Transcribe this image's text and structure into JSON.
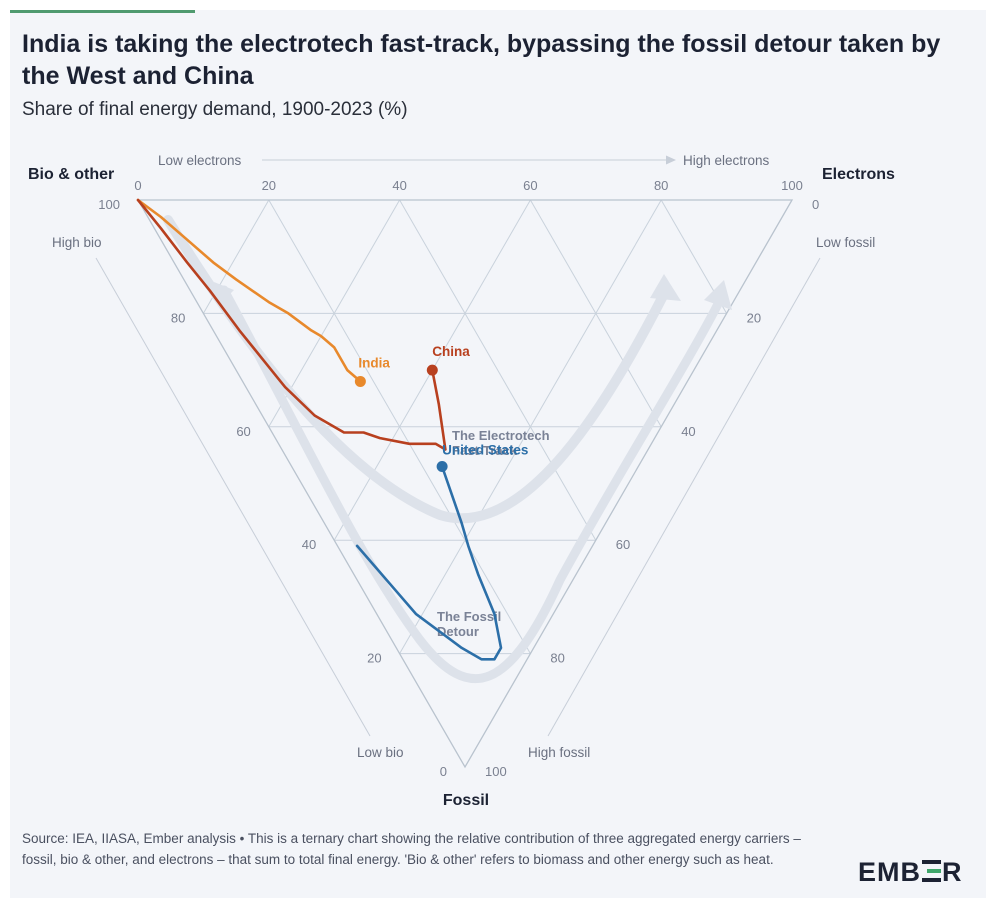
{
  "header": {
    "title": "India is taking the electrotech fast-track, bypassing the fossil detour taken by the West and China",
    "subtitle": "Share of final energy demand, 1900-2023 (%)"
  },
  "colors": {
    "accent": "#4f9a6f",
    "india": "#e8892c",
    "china": "#b8401f",
    "united_states": "#2c6fa8",
    "grid": "#c9d2dc",
    "arrow": "#dde2ea"
  },
  "chart_data": {
    "type": "ternary",
    "title": "India is taking the electrotech fast-track, bypassing the fossil detour taken by the West and China",
    "subtitle": "Share of final energy demand, 1900-2023 (%)",
    "components": [
      "Electrons",
      "Bio & other",
      "Fossil"
    ],
    "axes": {
      "bio_label": "Bio & other",
      "electrons_label": "Electrons",
      "fossil_label": "Fossil",
      "top_left_arrow": "Low electrons",
      "top_right_arrow": "High electrons",
      "high_bio": "High bio",
      "low_bio": "Low bio",
      "low_fossil": "Low fossil",
      "high_fossil": "High fossil"
    },
    "ticks": {
      "electrons": [
        "0",
        "20",
        "40",
        "60",
        "80",
        "100"
      ],
      "bio": [
        "100",
        "80",
        "60",
        "40",
        "20",
        "0"
      ],
      "fossil": [
        "0",
        "20",
        "40",
        "60",
        "80",
        "100"
      ]
    },
    "annotations": {
      "fast_track": [
        "The Electrotech",
        "Fast-Track"
      ],
      "fossil_detour": [
        "The Fossil",
        "Detour"
      ]
    },
    "series": [
      {
        "name": "India",
        "label": "India",
        "color_key": "india",
        "points": [
          [
            0,
            100,
            0
          ],
          [
            2,
            95,
            3
          ],
          [
            4,
            89,
            7
          ],
          [
            6,
            83,
            11
          ],
          [
            8,
            78,
            14
          ],
          [
            11,
            71,
            18
          ],
          [
            13,
            67,
            20
          ],
          [
            15,
            62,
            23
          ],
          [
            16,
            60,
            24
          ],
          [
            17,
            57,
            26
          ],
          [
            17,
            53,
            30
          ],
          [
            18,
            50,
            32
          ]
        ]
      },
      {
        "name": "China",
        "label": "China",
        "color_key": "china",
        "points": [
          [
            0,
            100,
            0
          ],
          [
            1,
            94,
            5
          ],
          [
            2,
            87,
            11
          ],
          [
            3,
            81,
            16
          ],
          [
            4,
            73,
            23
          ],
          [
            5,
            67,
            28
          ],
          [
            6,
            61,
            33
          ],
          [
            8,
            54,
            38
          ],
          [
            11,
            48,
            41
          ],
          [
            14,
            45,
            41
          ],
          [
            16,
            42,
            42
          ],
          [
            20,
            37,
            43
          ],
          [
            24,
            33,
            43
          ],
          [
            25,
            31,
            44
          ],
          [
            28,
            36,
            36
          ],
          [
            30,
            40,
            30
          ]
        ]
      },
      {
        "name": "United States",
        "label": "United States",
        "color_key": "united_states",
        "points": [
          [
            3,
            36,
            61
          ],
          [
            4,
            31,
            65
          ],
          [
            5,
            26,
            69
          ],
          [
            6,
            21,
            73
          ],
          [
            8,
            16,
            76
          ],
          [
            10,
            11,
            79
          ],
          [
            12,
            7,
            81
          ],
          [
            14,
            5,
            81
          ],
          [
            16,
            5,
            79
          ],
          [
            18,
            9,
            73
          ],
          [
            19,
            15,
            66
          ],
          [
            20,
            19,
            61
          ],
          [
            21,
            22,
            57
          ],
          [
            22,
            26,
            52
          ],
          [
            23,
            30,
            47
          ]
        ]
      }
    ]
  },
  "footer": {
    "source": "Source: IEA, IIASA, Ember analysis • This is a ternary chart showing the relative contribution of three aggregated energy carriers – fossil, bio & other, and electrons – that sum to total final energy. 'Bio & other' refers to biomass and other energy such as heat.",
    "logo": {
      "left": "EMB",
      "right": "R"
    }
  }
}
